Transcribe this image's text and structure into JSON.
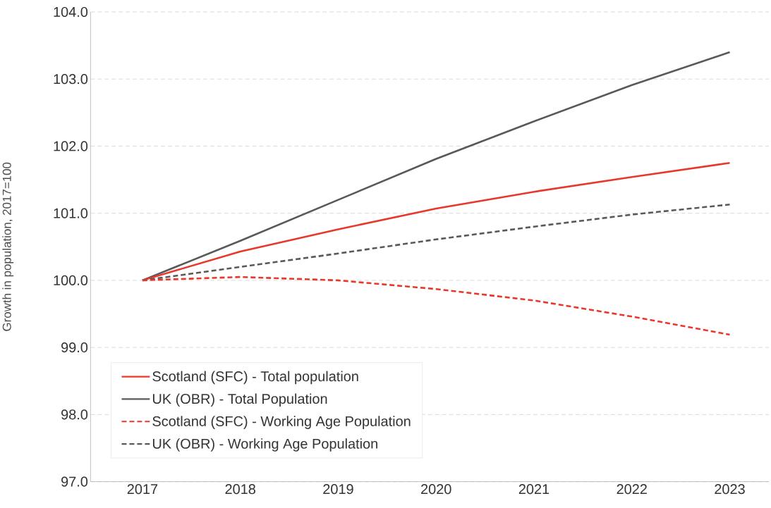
{
  "chart_data": {
    "type": "line",
    "ylabel": "Growth in population, 2017=100",
    "categories": [
      "2017",
      "2018",
      "2019",
      "2020",
      "2021",
      "2022",
      "2023"
    ],
    "series": [
      {
        "name": "Scotland (SFC) - Total population",
        "color": "#e8382b",
        "line_style": "solid",
        "values": [
          100.0,
          100.43,
          100.76,
          101.07,
          101.32,
          101.54,
          101.75
        ]
      },
      {
        "name": "UK (OBR) - Total Population",
        "color": "#595959",
        "line_style": "solid",
        "values": [
          100.0,
          100.59,
          101.2,
          101.81,
          102.37,
          102.91,
          103.4
        ]
      },
      {
        "name": "Scotland (SFC) - Working Age Population",
        "color": "#e8382b",
        "line_style": "dashed",
        "values": [
          100.0,
          100.05,
          100.0,
          99.87,
          99.7,
          99.46,
          99.19
        ]
      },
      {
        "name": "UK (OBR) - Working Age Population",
        "color": "#595959",
        "line_style": "dashed",
        "values": [
          100.0,
          100.2,
          100.4,
          100.61,
          100.8,
          100.98,
          101.13
        ]
      }
    ],
    "ylim": [
      97,
      104
    ],
    "yticks": [
      {
        "value": 97,
        "label": "97.0"
      },
      {
        "value": 98,
        "label": "98.0"
      },
      {
        "value": 99,
        "label": "99.0"
      },
      {
        "value": 100,
        "label": "100.0"
      },
      {
        "value": 101,
        "label": "101.0"
      },
      {
        "value": 102,
        "label": "102.0"
      },
      {
        "value": 103,
        "label": "103.0"
      },
      {
        "value": 104,
        "label": "104.0"
      }
    ],
    "grid": "y",
    "legend": "bottom left",
    "marker": "none"
  }
}
